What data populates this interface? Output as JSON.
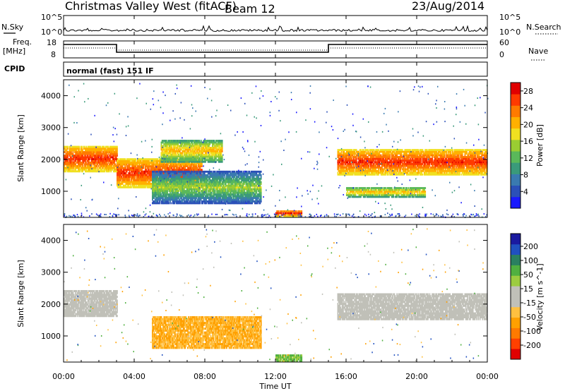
{
  "header": {
    "station": "Christmas Valley West (fitACF)",
    "beam": "Beam 12",
    "date": "23/Aug/2014"
  },
  "top_panels": {
    "nsky_label": "N.Sky",
    "nsearch_label": "N.Search",
    "nsky_ticks": [
      "10^5",
      "10^0"
    ],
    "nsearch_ticks": [
      "10^5",
      "10^0"
    ],
    "freq_label_1": "Freq.",
    "freq_label_2": "[MHz]",
    "freq_ticks": [
      "18",
      "8"
    ],
    "nave_label": "Nave",
    "nave_ticks": [
      "60",
      "0"
    ],
    "cpid_label": "CPID",
    "cpid_value": "normal (fast) 151 IF"
  },
  "x_axis": {
    "label": "Time UT",
    "ticks": [
      "00:00",
      "04:00",
      "08:00",
      "12:00",
      "16:00",
      "20:00",
      "00:00"
    ]
  },
  "colors": {
    "power": [
      "#1a1aff",
      "#2b50b8",
      "#3a7ab0",
      "#3a9a7a",
      "#5ab85a",
      "#9acd32",
      "#f0e020",
      "#ffb000",
      "#ff7a00",
      "#ff3a00",
      "#e00000"
    ],
    "velocity_pos": [
      "#1a1aa0",
      "#2050c0",
      "#2a8060",
      "#50b040",
      "#9ccc40"
    ],
    "velocity_gs": "#c0c0b8",
    "velocity_neg": [
      "#ffc040",
      "#ffa000",
      "#ff7a00",
      "#ff4000",
      "#e00000"
    ]
  },
  "chart_data": [
    {
      "type": "heatmap",
      "title": "",
      "ylabel": "Slant Range [km]",
      "xlabel": "",
      "xlim": [
        "00:00",
        "24:00"
      ],
      "ylim": [
        180,
        4500
      ],
      "yticks": [
        1000,
        2000,
        3000,
        4000
      ],
      "colorbar": {
        "label": "Power [dB]",
        "ticks": [
          4,
          8,
          12,
          16,
          20,
          24,
          28
        ],
        "range": [
          0,
          30
        ]
      },
      "regions": [
        {
          "t0": 0.0,
          "t1": 3.0,
          "r0": 1600,
          "r1": 2400,
          "level": "high"
        },
        {
          "t0": 3.0,
          "t1": 7.8,
          "r0": 1100,
          "r1": 2000,
          "level": "high"
        },
        {
          "t0": 5.5,
          "t1": 9.0,
          "r0": 1900,
          "r1": 2600,
          "level": "medium"
        },
        {
          "t0": 5.0,
          "t1": 11.2,
          "r0": 600,
          "r1": 1600,
          "level": "low-medium"
        },
        {
          "t0": 15.5,
          "t1": 24.0,
          "r0": 1500,
          "r1": 2300,
          "level": "high"
        },
        {
          "t0": 16.0,
          "t1": 20.5,
          "r0": 800,
          "r1": 1100,
          "level": "medium"
        },
        {
          "t0": 12.0,
          "t1": 13.5,
          "r0": 180,
          "r1": 400,
          "level": "high"
        }
      ]
    },
    {
      "type": "heatmap",
      "title": "",
      "ylabel": "Slant Range [km]",
      "xlabel": "Time UT",
      "xlim": [
        "00:00",
        "24:00"
      ],
      "ylim": [
        180,
        4500
      ],
      "yticks": [
        1000,
        2000,
        3000,
        4000
      ],
      "colorbar": {
        "label": "Velocity [m s^-1]",
        "ticks": [
          200,
          100,
          50,
          15,
          -15,
          -50,
          -100,
          -200
        ],
        "range": [
          -250,
          250
        ]
      },
      "regions": [
        {
          "t0": 0.0,
          "t1": 3.0,
          "r0": 1600,
          "r1": 2400,
          "velocity": "ground scatter"
        },
        {
          "t0": 15.5,
          "t1": 24.0,
          "r0": 1500,
          "r1": 2300,
          "velocity": "ground scatter"
        },
        {
          "t0": 5.0,
          "t1": 11.2,
          "r0": 600,
          "r1": 1600,
          "velocity": -50
        },
        {
          "t0": 12.0,
          "t1": 13.5,
          "r0": 180,
          "r1": 400,
          "velocity": 50
        }
      ]
    }
  ]
}
